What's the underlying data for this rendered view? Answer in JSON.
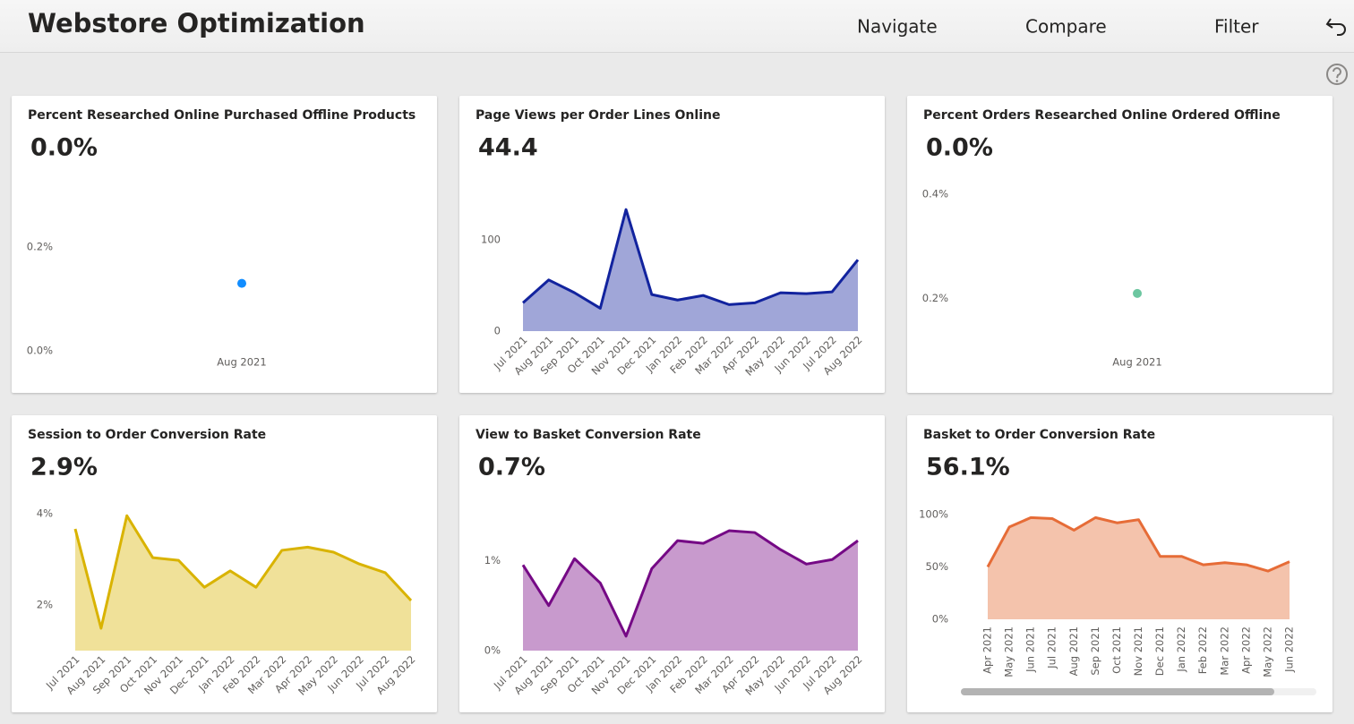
{
  "header": {
    "title": "Webstore Optimization",
    "nav": [
      "Navigate",
      "Compare",
      "Filter"
    ]
  },
  "chart_data": [
    {
      "type": "scatter",
      "title": "Percent Researched Online Purchased Offline Products",
      "kpi": "0.0%",
      "categories": [
        "Aug 2021"
      ],
      "values": [
        0.13
      ],
      "color": "#118dff",
      "ylim": [
        0,
        0.3
      ],
      "yticks": [
        {
          "value": 0,
          "label": "0.0%"
        },
        {
          "value": 0.2,
          "label": "0.2%"
        }
      ]
    },
    {
      "type": "area",
      "title": "Page Views per Order Lines Online",
      "kpi": "44.4",
      "categories": [
        "Jul 2021",
        "Aug 2021",
        "Sep 2021",
        "Oct 2021",
        "Nov 2021",
        "Dec 2021",
        "Jan 2022",
        "Feb 2022",
        "Mar 2022",
        "Apr 2022",
        "May 2022",
        "Jun 2022",
        "Jul 2022",
        "Aug 2022"
      ],
      "values": [
        31,
        56,
        42,
        25,
        133,
        40,
        34,
        39,
        29,
        31,
        42,
        41,
        43,
        78
      ],
      "color": "#12239e",
      "fill": "#a0a6d8",
      "ylim": [
        0,
        140
      ],
      "yticks": [
        0,
        100
      ]
    },
    {
      "type": "scatter",
      "title": "Percent Orders Researched Online Ordered Offline",
      "kpi": "0.0%",
      "categories": [
        "Aug 2021"
      ],
      "values": [
        0.21
      ],
      "color": "#6cc6a0",
      "ylim": [
        0.1,
        0.45
      ],
      "yticks": [
        {
          "value": 0.2,
          "label": "0.2%"
        },
        {
          "value": 0.4,
          "label": "0.4%"
        }
      ]
    },
    {
      "type": "area",
      "title": "Session to Order Conversion Rate",
      "kpi": "2.9%",
      "categories": [
        "Jul 2021",
        "Aug 2021",
        "Sep 2021",
        "Oct 2021",
        "Nov 2021",
        "Dec 2021",
        "Jan 2022",
        "Feb 2022",
        "Mar 2022",
        "Apr 2022",
        "May 2022",
        "Jun 2022",
        "Jul 2022",
        "Aug 2022"
      ],
      "values": [
        3.67,
        1.49,
        3.96,
        3.04,
        2.98,
        2.39,
        2.75,
        2.39,
        3.2,
        3.27,
        3.16,
        2.9,
        2.71,
        2.1
      ],
      "color": "#d9b300",
      "fill": "#f0e199",
      "ylim": [
        1,
        4.2
      ],
      "yticks": [
        {
          "value": 2,
          "label": "2%"
        },
        {
          "value": 4,
          "label": "4%"
        }
      ]
    },
    {
      "type": "area",
      "title": "View to Basket Conversion Rate",
      "kpi": "0.7%",
      "categories": [
        "Jul 2021",
        "Aug 2021",
        "Sep 2021",
        "Oct 2021",
        "Nov 2021",
        "Dec 2021",
        "Jan 2022",
        "Feb 2022",
        "Mar 2022",
        "Apr 2022",
        "May 2022",
        "Jun 2022",
        "Jul 2022",
        "Aug 2022"
      ],
      "values": [
        0.95,
        0.5,
        1.02,
        0.75,
        0.16,
        0.91,
        1.22,
        1.19,
        1.33,
        1.31,
        1.12,
        0.96,
        1.01,
        1.22
      ],
      "color": "#750985",
      "fill": "#c89acd",
      "ylim": [
        0,
        1.4
      ],
      "yticks": [
        {
          "value": 0,
          "label": "0%"
        },
        {
          "value": 1,
          "label": "1%"
        }
      ]
    },
    {
      "type": "area",
      "title": "Basket to Order Conversion Rate",
      "kpi": "56.1%",
      "categories": [
        "Apr 2021",
        "May 2021",
        "Jun 2021",
        "Jul 2021",
        "Aug 2021",
        "Sep 2021",
        "Oct 2021",
        "Nov 2021",
        "Dec 2021",
        "Jan 2022",
        "Feb 2022",
        "Mar 2022",
        "Apr 2022",
        "May 2022",
        "Jun 2022"
      ],
      "values": [
        50,
        88,
        97,
        96,
        85,
        97,
        92,
        95,
        60,
        60,
        52,
        54,
        52,
        46,
        55
      ],
      "color": "#e66c37",
      "fill": "#f4c3ac",
      "ylim": [
        0,
        105
      ],
      "yticks": [
        {
          "value": 0,
          "label": "0%"
        },
        {
          "value": 50,
          "label": "50%"
        },
        {
          "value": 100,
          "label": "100%"
        }
      ],
      "xlabel_rotation": 90
    }
  ]
}
